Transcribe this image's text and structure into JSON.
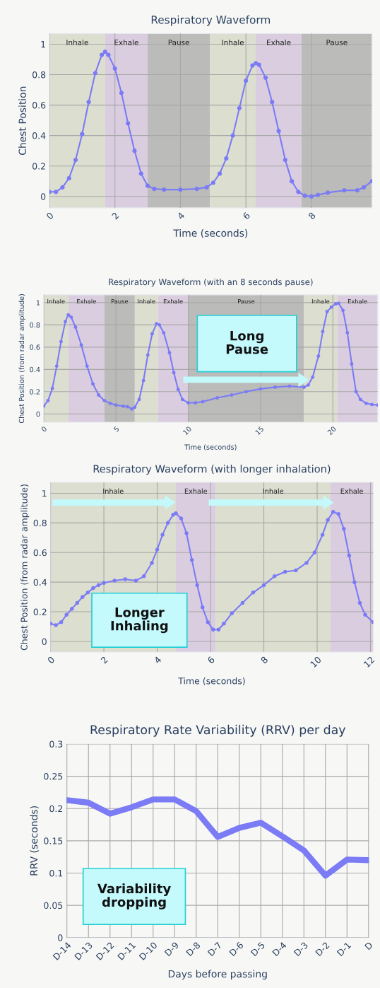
{
  "chart_data": [
    {
      "type": "line",
      "title": "Respiratory Waveform",
      "xlabel": "Time (seconds)",
      "ylabel": "Chest Position",
      "x": [
        0,
        0.2,
        0.4,
        0.6,
        0.8,
        1.0,
        1.2,
        1.4,
        1.6,
        1.7,
        1.8,
        2.0,
        2.2,
        2.4,
        2.6,
        2.8,
        3.0,
        3.2,
        3.5,
        4.0,
        4.5,
        4.8,
        5.0,
        5.2,
        5.4,
        5.6,
        5.8,
        6.0,
        6.2,
        6.3,
        6.4,
        6.6,
        6.8,
        7.0,
        7.2,
        7.4,
        7.6,
        7.8,
        8.0,
        8.2,
        8.5,
        9.0,
        9.4,
        9.6,
        9.85
      ],
      "series": [
        {
          "color": "#7b7bf5",
          "values": [
            0.03,
            0.03,
            0.06,
            0.12,
            0.24,
            0.41,
            0.62,
            0.81,
            0.93,
            0.95,
            0.93,
            0.84,
            0.68,
            0.48,
            0.3,
            0.15,
            0.07,
            0.05,
            0.045,
            0.045,
            0.05,
            0.06,
            0.09,
            0.15,
            0.25,
            0.4,
            0.58,
            0.76,
            0.86,
            0.875,
            0.865,
            0.78,
            0.62,
            0.43,
            0.24,
            0.1,
            0.03,
            0.005,
            0.0,
            0.01,
            0.025,
            0.04,
            0.04,
            0.06,
            0.1
          ]
        }
      ],
      "xlim": [
        0,
        9.85
      ],
      "ylim": [
        -0.075,
        1.07
      ],
      "xticks": [
        0,
        2,
        4,
        6,
        8
      ],
      "yticks": [
        0,
        0.2,
        0.4,
        0.6,
        0.8,
        1
      ],
      "grid": true,
      "marker": "circle",
      "bands": [
        {
          "axis": "x",
          "from": 0,
          "to": 1.7,
          "label": "Inhale",
          "color": "#dcdecf"
        },
        {
          "axis": "x",
          "from": 1.7,
          "to": 3.0,
          "label": "Exhale",
          "color": "#dacde0"
        },
        {
          "axis": "x",
          "from": 3.0,
          "to": 4.9,
          "label": "Pause",
          "color": "#bbbcb9"
        },
        {
          "axis": "x",
          "from": 4.9,
          "to": 6.3,
          "label": "Inhale",
          "color": "#dcdecf"
        },
        {
          "axis": "x",
          "from": 6.3,
          "to": 7.7,
          "label": "Exhale",
          "color": "#dacde0"
        },
        {
          "axis": "x",
          "from": 7.7,
          "to": 9.85,
          "label": "Pause",
          "color": "#bbbcb9"
        }
      ]
    },
    {
      "type": "line",
      "title": "Respiratory Waveform (with an 8 seconds pause)",
      "xlabel": "Time (seconds)",
      "ylabel": "Chest Position (from radar amplitude)",
      "x": [
        0,
        0.3,
        0.6,
        0.9,
        1.2,
        1.5,
        1.7,
        1.9,
        2.2,
        2.6,
        3.0,
        3.4,
        3.8,
        4.2,
        4.6,
        5.0,
        5.5,
        5.8,
        6.1,
        6.3,
        6.6,
        6.9,
        7.2,
        7.5,
        7.8,
        8.0,
        8.3,
        8.7,
        9.0,
        9.3,
        9.6,
        10.0,
        10.5,
        11.0,
        12.0,
        13.0,
        14.0,
        15.0,
        16.0,
        17.0,
        18.0,
        18.3,
        18.6,
        19.0,
        19.3,
        19.6,
        19.9,
        20.2,
        20.4,
        20.7,
        21.0,
        21.3,
        21.6,
        21.9,
        22.3,
        22.7,
        23.1
      ],
      "series": [
        {
          "color": "#7b7bf5",
          "values": [
            0.07,
            0.12,
            0.23,
            0.43,
            0.65,
            0.83,
            0.89,
            0.87,
            0.78,
            0.62,
            0.43,
            0.27,
            0.17,
            0.12,
            0.095,
            0.08,
            0.07,
            0.065,
            0.045,
            0.06,
            0.13,
            0.3,
            0.53,
            0.72,
            0.81,
            0.8,
            0.73,
            0.55,
            0.37,
            0.22,
            0.13,
            0.1,
            0.1,
            0.11,
            0.145,
            0.17,
            0.2,
            0.225,
            0.24,
            0.25,
            0.24,
            0.26,
            0.33,
            0.52,
            0.74,
            0.92,
            0.96,
            0.99,
            0.995,
            0.93,
            0.73,
            0.45,
            0.2,
            0.13,
            0.095,
            0.085,
            0.08
          ]
        }
      ],
      "xlim": [
        0,
        23.1
      ],
      "ylim": [
        -0.074,
        1.07
      ],
      "xticks": [
        0,
        5,
        10,
        15,
        20
      ],
      "yticks": [
        0,
        0.2,
        0.4,
        0.6,
        0.8,
        1
      ],
      "grid": true,
      "marker": "circle",
      "bands": [
        {
          "axis": "x",
          "from": 0,
          "to": 1.7,
          "label": "Inhale",
          "color": "#dcdecf"
        },
        {
          "axis": "x",
          "from": 1.7,
          "to": 4.2,
          "label": "Exhale",
          "color": "#dacde0"
        },
        {
          "axis": "x",
          "from": 4.2,
          "to": 6.3,
          "label": "Pause",
          "color": "#bbbcb9"
        },
        {
          "axis": "x",
          "from": 6.3,
          "to": 7.9,
          "label": "Inhale",
          "color": "#dcdecf"
        },
        {
          "axis": "x",
          "from": 7.9,
          "to": 10.0,
          "label": "Exhale",
          "color": "#dacde0"
        },
        {
          "axis": "x",
          "from": 10.0,
          "to": 18.0,
          "label": "Pause",
          "color": "#bbbcb9"
        },
        {
          "axis": "x",
          "from": 18.0,
          "to": 20.3,
          "label": "Inhale",
          "color": "#dcdecf"
        },
        {
          "axis": "x",
          "from": 20.3,
          "to": 23.1,
          "label": "Exhale",
          "color": "#dacde0"
        }
      ],
      "annotations": [
        "Long\nPause"
      ]
    },
    {
      "type": "line",
      "title": "Respiratory Waveform (with longer inhalation)",
      "xlabel": "Time (seconds)",
      "ylabel": "Chest Position (from radar amplitude)",
      "x": [
        0,
        0.2,
        0.4,
        0.6,
        0.8,
        1.0,
        1.2,
        1.4,
        1.6,
        1.8,
        2.0,
        2.4,
        2.8,
        3.2,
        3.5,
        3.8,
        4.0,
        4.2,
        4.4,
        4.6,
        4.7,
        4.9,
        5.1,
        5.3,
        5.5,
        5.7,
        5.9,
        6.1,
        6.3,
        6.5,
        6.8,
        7.2,
        7.6,
        8.0,
        8.4,
        8.8,
        9.2,
        9.6,
        9.9,
        10.2,
        10.4,
        10.6,
        10.8,
        11.0,
        11.2,
        11.4,
        11.6,
        11.8,
        12.1
      ],
      "series": [
        {
          "color": "#7b7bf5",
          "values": [
            0.12,
            0.11,
            0.13,
            0.18,
            0.22,
            0.26,
            0.3,
            0.33,
            0.36,
            0.38,
            0.395,
            0.41,
            0.42,
            0.41,
            0.44,
            0.53,
            0.62,
            0.72,
            0.8,
            0.855,
            0.865,
            0.83,
            0.73,
            0.55,
            0.38,
            0.23,
            0.13,
            0.08,
            0.08,
            0.12,
            0.19,
            0.26,
            0.33,
            0.38,
            0.44,
            0.47,
            0.48,
            0.53,
            0.6,
            0.72,
            0.82,
            0.875,
            0.86,
            0.76,
            0.58,
            0.4,
            0.26,
            0.18,
            0.13
          ]
        }
      ],
      "xlim": [
        0,
        12.1
      ],
      "ylim": [
        -0.072,
        1.074
      ],
      "xticks": [
        0,
        2,
        4,
        6,
        8,
        10,
        12
      ],
      "yticks": [
        0,
        0.2,
        0.4,
        0.6,
        0.8,
        1
      ],
      "grid": true,
      "marker": "circle",
      "bands": [
        {
          "axis": "x",
          "from": 0,
          "to": 4.7,
          "label": "Inhale",
          "color": "#dcdecf"
        },
        {
          "axis": "x",
          "from": 4.7,
          "to": 6.2,
          "label": "Exhale",
          "color": "#dacde0"
        },
        {
          "axis": "x",
          "from": 6.2,
          "to": 10.5,
          "label": "Inhale",
          "color": "#dcdecf"
        },
        {
          "axis": "x",
          "from": 10.5,
          "to": 12.1,
          "label": "Exhale",
          "color": "#dacde0"
        }
      ],
      "annotations": [
        "Longer\nInhaling"
      ]
    },
    {
      "type": "line",
      "title": "Respiratory Rate Variability (RRV) per day",
      "xlabel": "Days before passing",
      "ylabel": "RRV (seconds)",
      "categories": [
        "D-14",
        "D-13",
        "D-12",
        "D-11",
        "D-10",
        "D-9",
        "D-8",
        "D-7",
        "D-6",
        "D-5",
        "D-4",
        "D-3",
        "D-2",
        "D-1",
        "D"
      ],
      "series": [
        {
          "color": "#7b7bf5",
          "values": [
            0.213,
            0.209,
            0.192,
            0.202,
            0.214,
            0.214,
            0.196,
            0.156,
            0.17,
            0.178,
            0.157,
            0.135,
            0.096,
            0.121,
            0.12
          ]
        }
      ],
      "ylim": [
        0,
        0.3
      ],
      "yticks": [
        0,
        0.05,
        0.1,
        0.15,
        0.2,
        0.25,
        0.3
      ],
      "grid": true,
      "annotations": [
        "Variability\ndropping"
      ]
    }
  ]
}
